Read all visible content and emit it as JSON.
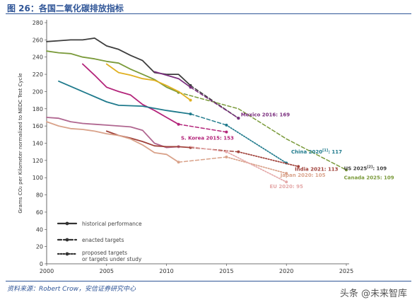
{
  "figure": {
    "title": "图 26：各国二氧化碳排放指标",
    "source": "资料来源：Robert Crow，安信证券研究中心",
    "watermark": "头条 @未来智库"
  },
  "chart_data": {
    "type": "line",
    "ylabel": "Grams CO₂ per Kilometer normalized to NEDC Test Cycle",
    "xlim": [
      2000,
      2025
    ],
    "ylim": [
      0,
      280
    ],
    "x_ticks": [
      2000,
      2005,
      2010,
      2015,
      2020,
      2025
    ],
    "x_tick_labels": [
      "2000",
      "2005",
      "2010",
      "2015",
      "2020",
      "2025"
    ],
    "y_ticks": [
      0,
      20,
      40,
      60,
      80,
      100,
      120,
      140,
      160,
      180,
      200,
      220,
      240,
      260,
      280
    ],
    "grid": false,
    "legend_position": "bottom-left",
    "legend": [
      {
        "style": "solid",
        "label": "historical performance"
      },
      {
        "style": "dashed",
        "label": "enacted targets"
      },
      {
        "style": "dotted",
        "label": "proposed targets or targets under study"
      }
    ],
    "series": [
      {
        "color": "#3d3d3d",
        "historical": [
          [
            2000,
            258
          ],
          [
            2001,
            259
          ],
          [
            2002,
            260
          ],
          [
            2003,
            260
          ],
          [
            2004,
            262
          ],
          [
            2005,
            253
          ],
          [
            2006,
            249
          ],
          [
            2007,
            242
          ],
          [
            2008,
            236
          ],
          [
            2009,
            222
          ],
          [
            2010,
            220
          ],
          [
            2011,
            220
          ],
          [
            2012,
            207
          ]
        ],
        "enacted": [
          [
            2012,
            207
          ],
          [
            2016,
            169
          ]
        ],
        "proposed": []
      },
      {
        "color": "#7a9a3a",
        "historical": [
          [
            2000,
            247
          ],
          [
            2001,
            245
          ],
          [
            2002,
            244
          ],
          [
            2003,
            240
          ],
          [
            2004,
            238
          ],
          [
            2005,
            235
          ],
          [
            2006,
            233
          ],
          [
            2007,
            226
          ],
          [
            2008,
            220
          ],
          [
            2009,
            214
          ],
          [
            2010,
            205
          ],
          [
            2011,
            199
          ]
        ],
        "enacted": [
          [
            2011,
            199
          ],
          [
            2016,
            180
          ],
          [
            2020,
            145
          ],
          [
            2025,
            109
          ]
        ],
        "proposed": []
      },
      {
        "color": "#e0b020",
        "historical": [
          [
            2005,
            232
          ],
          [
            2006,
            222
          ],
          [
            2007,
            219
          ],
          [
            2008,
            215
          ],
          [
            2009,
            213
          ],
          [
            2010,
            207
          ],
          [
            2011,
            200
          ],
          [
            2012,
            190
          ]
        ],
        "enacted": [],
        "proposed": []
      },
      {
        "color": "#7b2f7f",
        "historical": [
          [
            2009,
            223
          ],
          [
            2010,
            219
          ],
          [
            2011,
            215
          ],
          [
            2012,
            205
          ]
        ],
        "enacted": [
          [
            2012,
            205
          ],
          [
            2016,
            169
          ]
        ],
        "proposed": []
      },
      {
        "color": "#b3247a",
        "historical": [
          [
            2003,
            232
          ],
          [
            2004,
            219
          ],
          [
            2005,
            205
          ],
          [
            2006,
            200
          ],
          [
            2007,
            196
          ],
          [
            2008,
            185
          ],
          [
            2009,
            178
          ],
          [
            2010,
            170
          ],
          [
            2011,
            162
          ]
        ],
        "enacted": [
          [
            2011,
            162
          ],
          [
            2015,
            153
          ]
        ],
        "proposed": []
      },
      {
        "color": "#1f7a8c",
        "historical": [
          [
            2001,
            212
          ],
          [
            2003,
            200
          ],
          [
            2005,
            188
          ],
          [
            2006,
            184
          ],
          [
            2008,
            183
          ],
          [
            2010,
            178
          ],
          [
            2011,
            176
          ],
          [
            2012,
            174
          ]
        ],
        "enacted": [
          [
            2012,
            174
          ],
          [
            2015,
            161
          ]
        ],
        "proposed": [
          [
            2015,
            161
          ],
          [
            2020,
            117
          ]
        ]
      },
      {
        "color": "#b06690",
        "historical": [
          [
            2000,
            170
          ],
          [
            2001,
            169
          ],
          [
            2002,
            165
          ],
          [
            2003,
            163
          ],
          [
            2004,
            162
          ],
          [
            2005,
            161
          ],
          [
            2006,
            160
          ],
          [
            2007,
            159
          ],
          [
            2008,
            155
          ],
          [
            2009,
            140
          ],
          [
            2010,
            135
          ],
          [
            2011,
            136
          ]
        ],
        "enacted": [],
        "proposed": []
      },
      {
        "color": "#a0413a",
        "historical": [
          [
            2005,
            154
          ],
          [
            2006,
            149
          ],
          [
            2007,
            146
          ],
          [
            2008,
            142
          ],
          [
            2009,
            137
          ],
          [
            2010,
            136
          ],
          [
            2011,
            136
          ],
          [
            2012,
            135
          ]
        ],
        "enacted": [
          [
            2012,
            135
          ],
          [
            2016,
            130
          ]
        ],
        "proposed": [
          [
            2016,
            130
          ],
          [
            2021,
            113
          ]
        ]
      },
      {
        "color": "#d9a28a",
        "historical": [
          [
            2000,
            165
          ],
          [
            2001,
            160
          ],
          [
            2002,
            157
          ],
          [
            2003,
            156
          ],
          [
            2004,
            154
          ],
          [
            2005,
            151
          ],
          [
            2006,
            149
          ],
          [
            2007,
            145
          ],
          [
            2008,
            138
          ],
          [
            2009,
            129
          ],
          [
            2010,
            127
          ],
          [
            2011,
            118
          ]
        ],
        "enacted": [
          [
            2011,
            118
          ],
          [
            2015,
            124
          ]
        ],
        "proposed": [
          [
            2015,
            124
          ],
          [
            2020,
            105
          ]
        ]
      },
      {
        "color": "#e4a8a8",
        "historical": [],
        "enacted": [
          [
            2012,
            136
          ],
          [
            2015,
            130
          ]
        ],
        "proposed": [
          [
            2015,
            130
          ],
          [
            2020,
            95
          ]
        ]
      }
    ],
    "annotations": [
      {
        "text": "Mexico 2016: 169",
        "x": 2016.2,
        "y": 171,
        "color": "#7b2f7f"
      },
      {
        "text": "S. Korea 2015: 153",
        "x": 2011.2,
        "y": 144,
        "color": "#b3247a"
      },
      {
        "text": "China 2020",
        "sup": "[1]",
        "tail": ": 117",
        "x": 2020.4,
        "y": 128,
        "color": "#1f7a8c"
      },
      {
        "text": "India 2021: 113",
        "x": 2020.7,
        "y": 108,
        "color": "#a0413a"
      },
      {
        "text": "Japan 2020: 105",
        "x": 2019.5,
        "y": 101,
        "color": "#d9a28a"
      },
      {
        "text": "EU 2020: 95",
        "x": 2018.6,
        "y": 88,
        "color": "#e4a8a8"
      },
      {
        "text": "US 2025",
        "sup": "[2]",
        "tail": ": 109",
        "x": 2024.8,
        "y": 109,
        "color": "#3d3d3d"
      },
      {
        "text": "Canada 2025: 109",
        "x": 2024.8,
        "y": 98,
        "color": "#7a9a3a"
      }
    ]
  }
}
